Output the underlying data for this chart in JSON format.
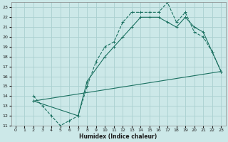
{
  "xlabel": "Humidex (Indice chaleur)",
  "bg_color": "#cce8e8",
  "grid_color": "#aad0d0",
  "line_color": "#1a7060",
  "xlim": [
    -0.5,
    23.5
  ],
  "ylim": [
    11,
    23.5
  ],
  "xticks": [
    0,
    1,
    2,
    3,
    4,
    5,
    6,
    7,
    8,
    9,
    10,
    11,
    12,
    13,
    14,
    15,
    16,
    17,
    18,
    19,
    20,
    21,
    22,
    23
  ],
  "yticks": [
    11,
    12,
    13,
    14,
    15,
    16,
    17,
    18,
    19,
    20,
    21,
    22,
    23
  ],
  "line1_x": [
    2,
    3,
    4,
    5,
    6,
    7,
    8,
    9,
    10,
    11,
    12,
    13,
    14,
    15,
    16,
    17,
    18,
    19,
    20,
    21,
    22,
    23
  ],
  "line1_y": [
    14,
    13,
    12,
    11,
    11.5,
    12,
    15,
    17.5,
    19,
    19.5,
    21.5,
    22.5,
    22.5,
    22.5,
    22.5,
    23.5,
    21.5,
    22.5,
    20.5,
    20,
    18.5,
    16.5
  ],
  "line2_x": [
    2,
    7,
    8,
    10,
    11,
    12,
    13,
    14,
    15,
    16,
    17,
    18,
    19,
    20,
    21,
    22,
    23
  ],
  "line2_y": [
    13.5,
    12,
    15.5,
    18,
    19,
    20,
    21,
    22,
    22,
    22,
    21.5,
    21,
    22,
    21,
    20.5,
    18.5,
    16.5
  ],
  "line3_x": [
    2,
    23
  ],
  "line3_y": [
    13.5,
    16.5
  ]
}
